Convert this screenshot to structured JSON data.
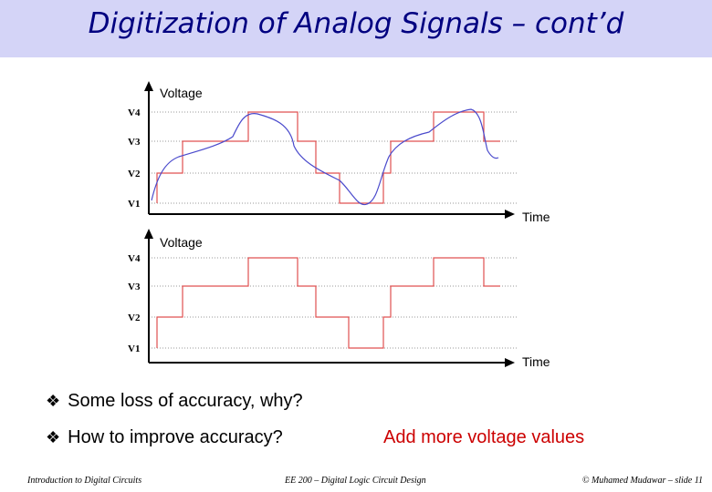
{
  "slide": {
    "title": "Digitization of Analog Signals – cont’d"
  },
  "chart_data": [
    {
      "type": "line",
      "ylabel": "Voltage",
      "xlabel": "Time",
      "y_levels": [
        "V1",
        "V2",
        "V3",
        "V4"
      ],
      "series": [
        {
          "color": "#4a4acc",
          "style": "analog"
        },
        {
          "color": "#e05050",
          "style": "quantized",
          "values": [
            "V1",
            "V2",
            "V3",
            "V3",
            "V4",
            "V3",
            "V2",
            "V1",
            "V1",
            "V3",
            "V4",
            "V3"
          ]
        }
      ]
    },
    {
      "type": "line",
      "ylabel": "Voltage",
      "xlabel": "Time",
      "y_levels": [
        "V1",
        "V2",
        "V3",
        "V4"
      ],
      "series": [
        {
          "color": "#e05050",
          "style": "quantized",
          "values": [
            "V1",
            "V2",
            "V3",
            "V3",
            "V4",
            "V3",
            "V2",
            "V1",
            "V1",
            "V3",
            "V4",
            "V3"
          ]
        }
      ]
    }
  ],
  "bullets": [
    {
      "marker": "❖",
      "text": "Some loss of accuracy, why?"
    },
    {
      "marker": "❖",
      "text": "How to improve accuracy?"
    }
  ],
  "answer": "Add more voltage values",
  "footer": {
    "left": "Introduction to Digital Circuits",
    "center": "EE 200 – Digital Logic Circuit Design",
    "right": "© Muhamed Mudawar – slide 11"
  },
  "colors": {
    "title": "#000080",
    "title_bg": "#d4d4f7",
    "answer": "#cc0000"
  }
}
